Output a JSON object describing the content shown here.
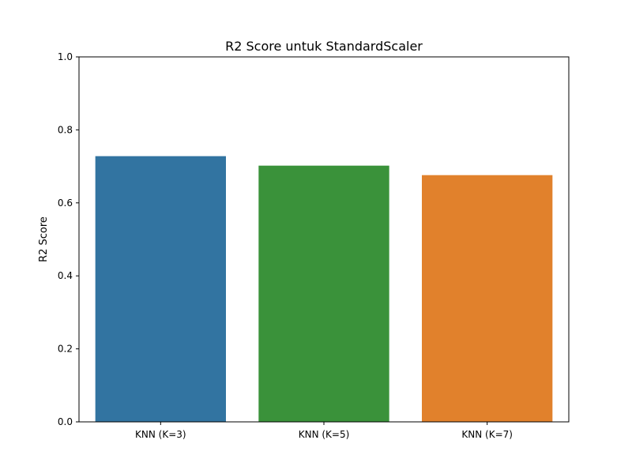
{
  "chart_data": {
    "type": "bar",
    "title": "R2 Score untuk StandardScaler",
    "xlabel": "",
    "ylabel": "R2 Score",
    "categories": [
      "KNN (K=3)",
      "KNN (K=5)",
      "KNN (K=7)"
    ],
    "values": [
      0.728,
      0.702,
      0.676
    ],
    "colors": [
      "#3274a1",
      "#3a923a",
      "#e1812c"
    ],
    "ylim": [
      0,
      1.0
    ],
    "yticks": [
      0.0,
      0.2,
      0.4,
      0.6,
      0.8,
      1.0
    ],
    "ytick_labels": [
      "0.0",
      "0.2",
      "0.4",
      "0.6",
      "0.8",
      "1.0"
    ],
    "grid": false,
    "legend": "none"
  }
}
